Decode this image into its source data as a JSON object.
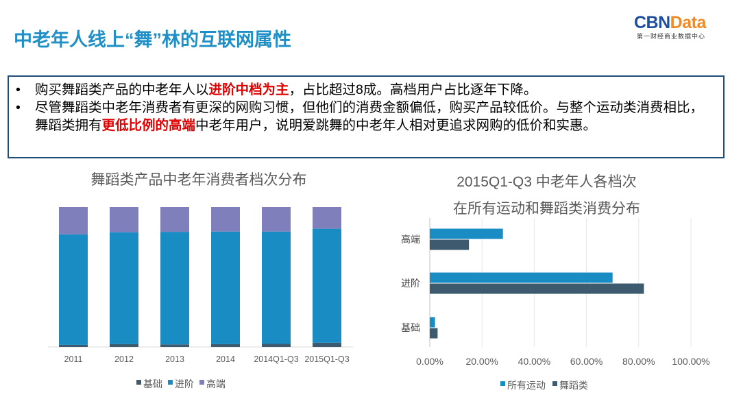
{
  "header": {
    "title": "中老年人线上“舞”林的互联网属性",
    "logo_main_a": "CBN",
    "logo_main_b": "Data",
    "logo_sub": "第一财经商业数据中心"
  },
  "summary": {
    "bullet_symbol": "•",
    "b1_a": "购买舞蹈类产品的中老年人以",
    "b1_hl": "进阶中档为主",
    "b1_b": "，占比超过8成。高档用户占比逐年下降。",
    "b2_a": "尽管舞蹈类中老年消费者有更深的网购习惯，但他们的消费金额偏低，购买产品较低价。与整个运动类消费相比，舞蹈类拥有",
    "b2_hl": "更低比例的高端",
    "b2_b": "中老年用户，说明爱跳舞的中老年人相对更追求网购的低价和实惠。"
  },
  "colors": {
    "basic": "#3d5a6e",
    "advanced": "#1a8cc4",
    "high": "#7f7fbc",
    "all_sports": "#1a8cc4",
    "dance": "#3d5a6e"
  },
  "chart_data": [
    {
      "type": "bar",
      "stacked": true,
      "title": "舞蹈类产品中老年消费者档次分布",
      "categories": [
        "2011",
        "2012",
        "2013",
        "2014",
        "2014Q1-Q3",
        "2015Q1-Q3"
      ],
      "series": [
        {
          "name": "基础",
          "values": [
            1.5,
            2.0,
            1.8,
            2.0,
            2.2,
            3.0
          ]
        },
        {
          "name": "进阶",
          "values": [
            79.0,
            80.0,
            80.5,
            80.5,
            80.3,
            81.5
          ]
        },
        {
          "name": "高端",
          "values": [
            19.5,
            18.0,
            17.7,
            17.5,
            17.5,
            15.5
          ]
        }
      ],
      "ylim": [
        0,
        100
      ],
      "legend": "bottom"
    },
    {
      "type": "bar",
      "orientation": "horizontal",
      "title_line1": "2015Q1-Q3 中老年人各档次",
      "title_line2": "在所有运动和舞蹈类消费分布",
      "categories": [
        "高端",
        "进阶",
        "基础"
      ],
      "series": [
        {
          "name": "所有运动",
          "values": [
            0.28,
            0.7,
            0.02
          ]
        },
        {
          "name": "舞蹈类",
          "values": [
            0.15,
            0.82,
            0.03
          ]
        }
      ],
      "xlim": [
        0,
        1
      ],
      "xticks": [
        "0.00%",
        "20.00%",
        "40.00%",
        "60.00%",
        "80.00%",
        "100.00%"
      ],
      "legend": "bottom"
    }
  ]
}
